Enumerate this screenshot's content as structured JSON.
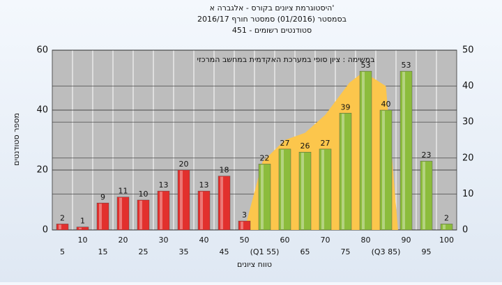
{
  "chart_data": {
    "type": "bar",
    "title": [
      "היסטוגרמת ציונים בקורס - אלגברה א'",
      "בסמסטר  (01/2016)  סמסטר חורף 2016/17",
      "סטודנטים רשומים - 451"
    ],
    "annotation": "במשימה : ציון סופי במערכת האקדמית במחשב המרכזי",
    "y_label": "מספר סטודנטים",
    "x_label": "טווח ציונים",
    "categories": [
      "5",
      "10",
      "15",
      "20",
      "25",
      "30",
      "35",
      "40",
      "45",
      "50",
      "(Q1 55)",
      "60",
      "65",
      "70",
      "75",
      "80",
      "(Q3 85)",
      "90",
      "95",
      "100"
    ],
    "values": [
      2,
      1,
      9,
      11,
      10,
      13,
      20,
      13,
      18,
      3,
      22,
      27,
      26,
      27,
      39,
      53,
      40,
      53,
      23,
      2
    ],
    "bar_colors": [
      "#e2302d",
      "#e2302d",
      "#e2302d",
      "#e2302d",
      "#e2302d",
      "#e2302d",
      "#e2302d",
      "#e2302d",
      "#e2302d",
      "#e2302d",
      "#8cbc3c",
      "#8cbc3c",
      "#8cbc3c",
      "#8cbc3c",
      "#8cbc3c",
      "#8cbc3c",
      "#8cbc3c",
      "#8cbc3c",
      "#8cbc3c",
      "#8cbc3c"
    ],
    "area": {
      "axis": "y2",
      "color": "#fcc64c",
      "x": [
        50,
        54.5,
        60,
        65,
        70,
        76,
        79.5,
        85,
        88
      ],
      "values": [
        0,
        19,
        25,
        27,
        32,
        41,
        44,
        40,
        0
      ]
    },
    "ylim": [
      0,
      60
    ],
    "yticks": [
      0,
      20,
      40,
      60
    ],
    "y2lim": [
      0,
      50
    ],
    "y2ticks": [
      0,
      10,
      20,
      30,
      40,
      50
    ],
    "grid": true
  }
}
